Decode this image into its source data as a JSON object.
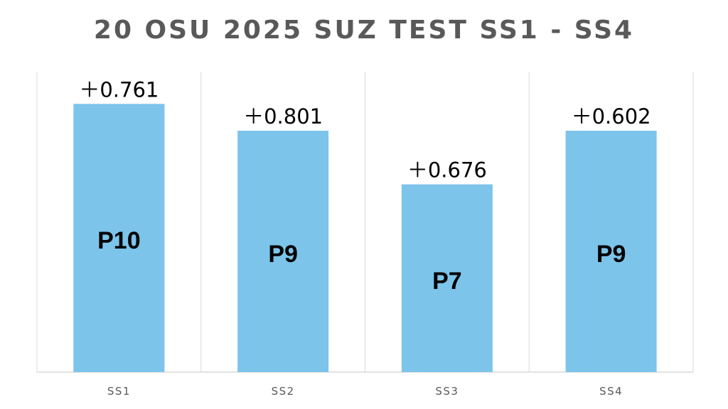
{
  "chart_data": {
    "type": "bar",
    "title": "20 OSU 2025 SUZ TEST SS1 - SS4",
    "categories": [
      "SS1",
      "SS2",
      "SS3",
      "SS4"
    ],
    "values": [
      10,
      9,
      7,
      9
    ],
    "bar_labels": [
      "P10",
      "P9",
      "P7",
      "P9"
    ],
    "data_labels": [
      "＋0.761",
      "＋0.801",
      "＋0.676",
      "＋0.602"
    ],
    "ylim": [
      0,
      11.2
    ],
    "grid": false,
    "legend": "none",
    "bar_color": "#7cc4ea",
    "axis_color": "#d9d9d9"
  }
}
